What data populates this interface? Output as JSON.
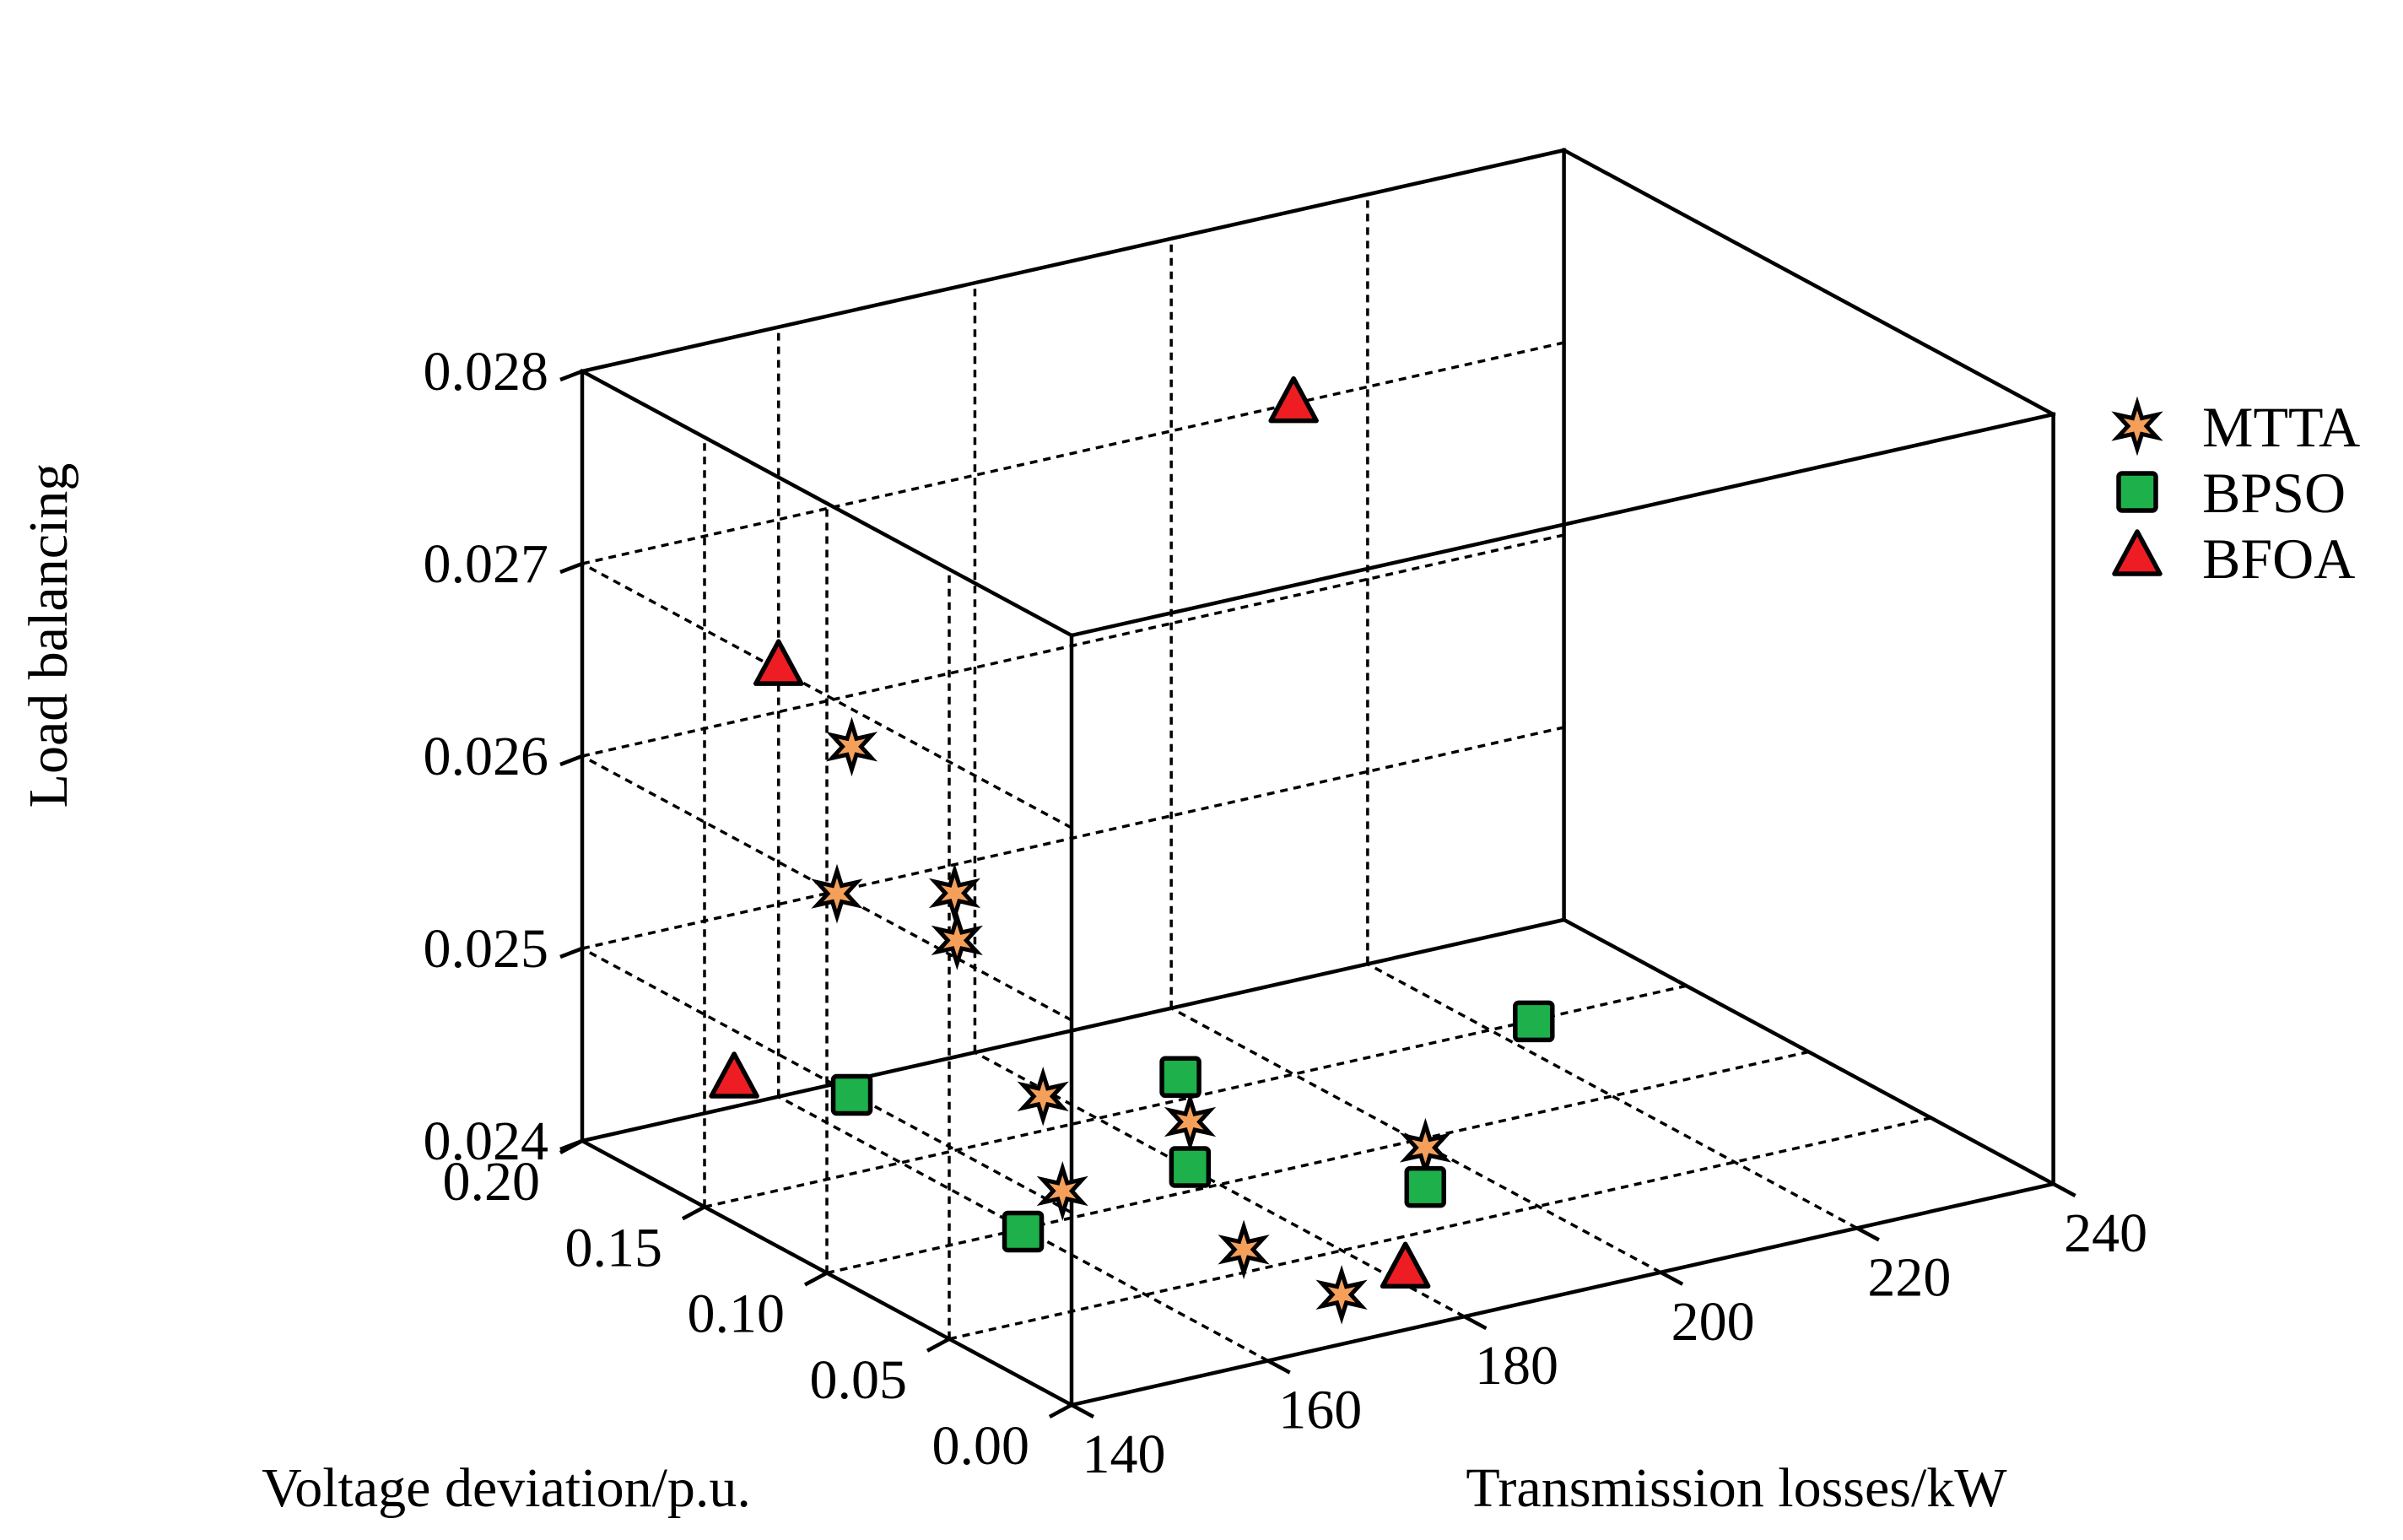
{
  "chart_data": {
    "type": "scatter",
    "projection": "3d",
    "grid": true,
    "legend_position": "right",
    "axes": {
      "x": {
        "label": "Transmission losses/kW",
        "range": [
          140,
          240
        ],
        "ticks": [
          "140",
          "160",
          "180",
          "200",
          "220",
          "240"
        ],
        "tick_values": [
          140,
          160,
          180,
          200,
          220,
          240
        ]
      },
      "y": {
        "label": "Voltage deviation/p.u.",
        "range": [
          0.0,
          0.2
        ],
        "ticks": [
          "0.00",
          "0.05",
          "0.10",
          "0.15",
          "0.20"
        ],
        "tick_values": [
          0.0,
          0.05,
          0.1,
          0.15,
          0.2
        ]
      },
      "z": {
        "label": "Load balancing",
        "range": [
          0.024,
          0.028
        ],
        "ticks": [
          "0.024",
          "0.025",
          "0.026",
          "0.027",
          "0.028"
        ],
        "tick_values": [
          0.024,
          0.025,
          0.026,
          0.027,
          0.028
        ]
      }
    },
    "series": [
      {
        "name": "MTTA",
        "marker": "star",
        "fill": "#F5A05A",
        "points": [
          {
            "x": 155,
            "y": 0.15,
            "z": 0.02622
          },
          {
            "x": 158,
            "y": 0.12,
            "z": 0.02563
          },
          {
            "x": 151,
            "y": 0.14,
            "z": 0.02557
          },
          {
            "x": 157,
            "y": 0.115,
            "z": 0.02543
          },
          {
            "x": 167,
            "y": 0.12,
            "z": 0.02447
          },
          {
            "x": 177,
            "y": 0.1,
            "z": 0.02436
          },
          {
            "x": 191,
            "y": 0.06,
            "z": 0.02434
          },
          {
            "x": 164,
            "y": 0.1,
            "z": 0.02415
          },
          {
            "x": 170,
            "y": 0.05,
            "z": 0.02412
          },
          {
            "x": 170,
            "y": 0.01,
            "z": 0.02416
          }
        ]
      },
      {
        "name": "BPSO",
        "marker": "square",
        "fill": "#1EB04A",
        "points": [
          {
            "x": 212,
            "y": 0.1,
            "z": 0.02448
          },
          {
            "x": 181,
            "y": 0.12,
            "z": 0.02441
          },
          {
            "x": 155,
            "y": 0.15,
            "z": 0.02441
          },
          {
            "x": 172,
            "y": 0.08,
            "z": 0.02432
          },
          {
            "x": 186,
            "y": 0.04,
            "z": 0.02433
          },
          {
            "x": 155,
            "y": 0.08,
            "z": 0.02418
          }
        ]
      },
      {
        "name": "BFOA",
        "marker": "triangle",
        "fill": "#EE1D23",
        "points": [
          {
            "x": 200,
            "y": 0.15,
            "z": 0.02748
          },
          {
            "x": 160,
            "y": 0.2,
            "z": 0.02623
          },
          {
            "x": 148,
            "y": 0.17,
            "z": 0.02443
          },
          {
            "x": 174,
            "y": 0.0,
            "z": 0.02431
          }
        ]
      }
    ]
  }
}
